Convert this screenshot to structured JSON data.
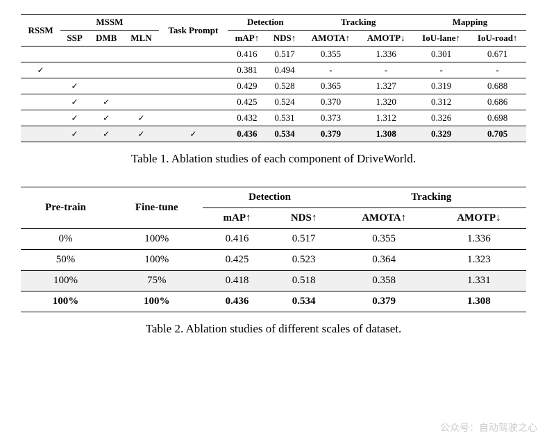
{
  "table1": {
    "headers": {
      "rssm": "RSSM",
      "mssm_group": "MSSM",
      "ssp": "SSP",
      "dmb": "DMB",
      "mln": "MLN",
      "task_prompt": "Task Prompt",
      "detection_group": "Detection",
      "map": "mAP↑",
      "nds": "NDS↑",
      "tracking_group": "Tracking",
      "amota": "AMOTA↑",
      "amotp": "AMOTP↓",
      "mapping_group": "Mapping",
      "iou_lane": "IoU-lane↑",
      "iou_road": "IoU-road↑"
    },
    "rows": [
      {
        "rssm": "",
        "ssp": "",
        "dmb": "",
        "mln": "",
        "tp": "",
        "map": "0.416",
        "nds": "0.517",
        "amota": "0.355",
        "amotp": "1.336",
        "lane": "0.301",
        "road": "0.671",
        "bold": false,
        "hl": false
      },
      {
        "rssm": "✓",
        "ssp": "",
        "dmb": "",
        "mln": "",
        "tp": "",
        "map": "0.381",
        "nds": "0.494",
        "amota": "-",
        "amotp": "-",
        "lane": "-",
        "road": "-",
        "bold": false,
        "hl": false
      },
      {
        "rssm": "",
        "ssp": "✓",
        "dmb": "",
        "mln": "",
        "tp": "",
        "map": "0.429",
        "nds": "0.528",
        "amota": "0.365",
        "amotp": "1.327",
        "lane": "0.319",
        "road": "0.688",
        "bold": false,
        "hl": false
      },
      {
        "rssm": "",
        "ssp": "✓",
        "dmb": "✓",
        "mln": "",
        "tp": "",
        "map": "0.425",
        "nds": "0.524",
        "amota": "0.370",
        "amotp": "1.320",
        "lane": "0.312",
        "road": "0.686",
        "bold": false,
        "hl": false
      },
      {
        "rssm": "",
        "ssp": "✓",
        "dmb": "✓",
        "mln": "✓",
        "tp": "",
        "map": "0.432",
        "nds": "0.531",
        "amota": "0.373",
        "amotp": "1.312",
        "lane": "0.326",
        "road": "0.698",
        "bold": false,
        "hl": false
      },
      {
        "rssm": "",
        "ssp": "✓",
        "dmb": "✓",
        "mln": "✓",
        "tp": "✓",
        "map": "0.436",
        "nds": "0.534",
        "amota": "0.379",
        "amotp": "1.308",
        "lane": "0.329",
        "road": "0.705",
        "bold": true,
        "hl": true
      }
    ],
    "caption": "Table 1. Ablation studies of each component of DriveWorld."
  },
  "table2": {
    "headers": {
      "pretrain": "Pre-train",
      "finetune": "Fine-tune",
      "detection_group": "Detection",
      "map": "mAP↑",
      "nds": "NDS↑",
      "tracking_group": "Tracking",
      "amota": "AMOTA↑",
      "amotp": "AMOTP↓"
    },
    "rows": [
      {
        "pre": "0%",
        "ft": "100%",
        "map": "0.416",
        "nds": "0.517",
        "amota": "0.355",
        "amotp": "1.336",
        "bold": false,
        "hl": false
      },
      {
        "pre": "50%",
        "ft": "100%",
        "map": "0.425",
        "nds": "0.523",
        "amota": "0.364",
        "amotp": "1.323",
        "bold": false,
        "hl": false
      },
      {
        "pre": "100%",
        "ft": "75%",
        "map": "0.418",
        "nds": "0.518",
        "amota": "0.358",
        "amotp": "1.331",
        "bold": false,
        "hl": true
      },
      {
        "pre": "100%",
        "ft": "100%",
        "map": "0.436",
        "nds": "0.534",
        "amota": "0.379",
        "amotp": "1.308",
        "bold": true,
        "hl": false
      }
    ],
    "caption": "Table 2. Ablation studies of different scales of dataset."
  },
  "watermark": "公众号：自动驾驶之心",
  "style": {
    "background_color": "#ffffff",
    "text_color": "#000000",
    "highlight_color": "#f0f0f0",
    "rule_thick": 1.5,
    "rule_thin": 0.75,
    "table1_fontsize": 13,
    "table2_fontsize": 15,
    "caption_fontsize": 17,
    "font_family": "Times New Roman"
  }
}
